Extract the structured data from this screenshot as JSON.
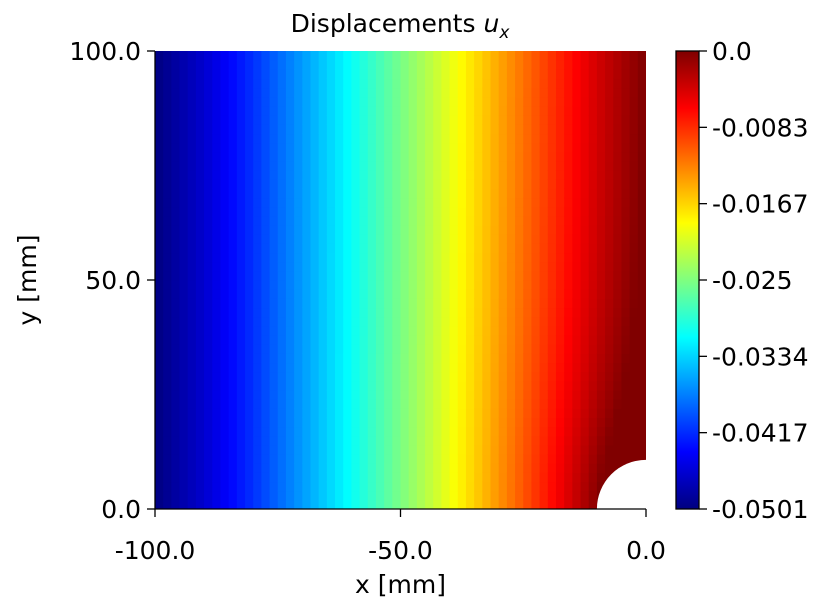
{
  "chart_data": {
    "type": "heatmap",
    "title": "Displacements",
    "title_symbol": "u",
    "title_symbol_subscript": "x",
    "xlabel": "x [mm]",
    "ylabel": "y [mm]",
    "xlim": [
      -100.0,
      0.0
    ],
    "ylim": [
      0.0,
      100.0
    ],
    "xticks": [
      "-100.0",
      "-50.0",
      "0.0"
    ],
    "yticks": [
      "0.0",
      "50.0",
      "100.0"
    ],
    "colormap": "jet",
    "color_range": [
      -0.0501,
      0.0
    ],
    "colorbar_ticks": [
      "0.0",
      "-0.0083",
      "-0.0167",
      "-0.025",
      "-0.0334",
      "-0.0417",
      "-0.0501"
    ],
    "hole": {
      "center": [
        0.0,
        0.0
      ],
      "radius": 10.0
    },
    "field_profile": {
      "x": [
        -100,
        -90,
        -80,
        -70,
        -60,
        -50,
        -40,
        -30,
        -20,
        -10,
        0
      ],
      "ux": [
        -0.0501,
        -0.0462,
        -0.0415,
        -0.0362,
        -0.031,
        -0.0255,
        -0.02,
        -0.0145,
        -0.0092,
        -0.0042,
        0.0
      ]
    },
    "grid": false
  }
}
